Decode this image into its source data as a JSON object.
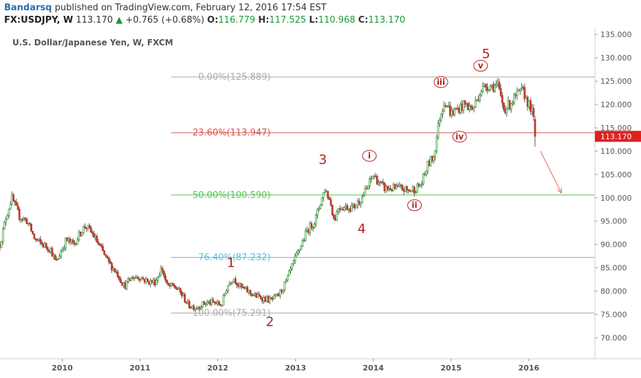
{
  "header": {
    "author": "Bandarsq",
    "published_text": "published on TradingView.com, February 12, 2016 17:54 EST",
    "symbol": "FX:USDJPY, W",
    "last": "113.170",
    "change": "+0.765 (+0.68%)",
    "o_label": "O:",
    "o_value": "116.779",
    "h_label": "H:",
    "h_value": "117.525",
    "l_label": "L:",
    "l_value": "110.968",
    "c_label": "C:",
    "c_value": "113.170"
  },
  "colors": {
    "up_body": "#ffffff",
    "down_body": "#c0392b",
    "wick": "#5a5a5a",
    "up_border": "#3aa13a",
    "fib_0": "#aaaaaa",
    "fib_236": "#d9534f",
    "fib_50": "#55c455",
    "fib_764": "#5bc0de",
    "fib_100": "#aaaaaa",
    "wave_label": "#b22222",
    "price_tag": "#e02020"
  },
  "chart_data": {
    "type": "candlestick",
    "title": "U.S. Dollar/Japanese Yen, W, FXCM",
    "x_start": 2009.2,
    "x_end": 2016.85,
    "ylim": [
      65.5,
      136.5
    ],
    "x_ticks": [
      2010,
      2011,
      2012,
      2013,
      2014,
      2015,
      2016
    ],
    "x_tick_labels": [
      "2010",
      "2011",
      "2012",
      "2013",
      "2014",
      "2015",
      "2016"
    ],
    "y_ticks": [
      70,
      75,
      80,
      85,
      90,
      95,
      100,
      105,
      110,
      115,
      120,
      125,
      130,
      135
    ],
    "y_tick_labels": [
      "70.000",
      "75.000",
      "80.000",
      "85.000",
      "90.000",
      "95.000",
      "100.000",
      "105.000",
      "110.000",
      "115.000",
      "120.000",
      "125.000",
      "130.000",
      "135.000"
    ],
    "last_price": 113.17,
    "last_price_label": "113.170",
    "fib_levels": [
      {
        "label": "0.00%(125.889)",
        "price": 125.889,
        "color": "#aaaaaa"
      },
      {
        "label": "23.60%(113.947)",
        "price": 113.947,
        "color": "#d9534f"
      },
      {
        "label": "50.00%(100.590)",
        "price": 100.59,
        "color": "#55c455"
      },
      {
        "label": "76.40%(87.232)",
        "price": 87.232,
        "color": "#5bc0de"
      },
      {
        "label": "100.00%(75.291)",
        "price": 75.291,
        "color": "#aaaaaa"
      }
    ],
    "price_path": [
      [
        2009.2,
        90
      ],
      [
        2009.28,
        96
      ],
      [
        2009.35,
        100
      ],
      [
        2009.45,
        96
      ],
      [
        2009.55,
        95
      ],
      [
        2009.65,
        91
      ],
      [
        2009.75,
        90
      ],
      [
        2009.85,
        89
      ],
      [
        2009.92,
        86
      ],
      [
        2010.05,
        91
      ],
      [
        2010.15,
        90
      ],
      [
        2010.25,
        93
      ],
      [
        2010.3,
        94
      ],
      [
        2010.4,
        92
      ],
      [
        2010.5,
        89
      ],
      [
        2010.6,
        86
      ],
      [
        2010.7,
        84
      ],
      [
        2010.8,
        81
      ],
      [
        2010.9,
        83
      ],
      [
        2011.0,
        83
      ],
      [
        2011.1,
        82
      ],
      [
        2011.2,
        82
      ],
      [
        2011.28,
        85
      ],
      [
        2011.35,
        81
      ],
      [
        2011.45,
        81
      ],
      [
        2011.55,
        79
      ],
      [
        2011.62,
        77
      ],
      [
        2011.72,
        76.5
      ],
      [
        2011.85,
        77.5
      ],
      [
        2011.95,
        77.5
      ],
      [
        2012.05,
        77
      ],
      [
        2012.12,
        81
      ],
      [
        2012.2,
        83
      ],
      [
        2012.28,
        81
      ],
      [
        2012.38,
        80
      ],
      [
        2012.48,
        79
      ],
      [
        2012.58,
        78.5
      ],
      [
        2012.68,
        78
      ],
      [
        2012.78,
        79
      ],
      [
        2012.88,
        82
      ],
      [
        2012.95,
        85
      ],
      [
        2013.05,
        89
      ],
      [
        2013.15,
        93
      ],
      [
        2013.25,
        95
      ],
      [
        2013.32,
        99
      ],
      [
        2013.38,
        102
      ],
      [
        2013.45,
        99
      ],
      [
        2013.5,
        95
      ],
      [
        2013.55,
        98
      ],
      [
        2013.65,
        98
      ],
      [
        2013.75,
        98
      ],
      [
        2013.85,
        100
      ],
      [
        2013.92,
        102
      ],
      [
        2014.0,
        105
      ],
      [
        2014.08,
        103
      ],
      [
        2014.15,
        102
      ],
      [
        2014.25,
        102
      ],
      [
        2014.35,
        102
      ],
      [
        2014.45,
        101.5
      ],
      [
        2014.55,
        102
      ],
      [
        2014.62,
        103
      ],
      [
        2014.7,
        107
      ],
      [
        2014.78,
        109
      ],
      [
        2014.85,
        117
      ],
      [
        2014.92,
        121
      ],
      [
        2015.0,
        118
      ],
      [
        2015.08,
        119
      ],
      [
        2015.18,
        120
      ],
      [
        2015.28,
        119
      ],
      [
        2015.38,
        123
      ],
      [
        2015.45,
        124
      ],
      [
        2015.52,
        124
      ],
      [
        2015.6,
        124
      ],
      [
        2015.68,
        119
      ],
      [
        2015.75,
        120
      ],
      [
        2015.85,
        122
      ],
      [
        2015.92,
        123
      ],
      [
        2016.0,
        120
      ],
      [
        2016.05,
        118
      ],
      [
        2016.09,
        113.17
      ]
    ],
    "wave_labels": [
      {
        "text": "1",
        "x": 2012.17,
        "y": 86.2,
        "style": "plain"
      },
      {
        "text": "2",
        "x": 2012.67,
        "y": 73.5,
        "style": "plain"
      },
      {
        "text": "3",
        "x": 2013.35,
        "y": 108.3,
        "style": "plain"
      },
      {
        "text": "4",
        "x": 2013.85,
        "y": 93.5,
        "style": "plain"
      },
      {
        "text": "5",
        "x": 2015.45,
        "y": 131.0,
        "style": "plain"
      },
      {
        "text": "i",
        "x": 2013.95,
        "y": 109.0,
        "style": "circle"
      },
      {
        "text": "ii",
        "x": 2014.53,
        "y": 98.4,
        "style": "circle"
      },
      {
        "text": "iii",
        "x": 2014.87,
        "y": 124.8,
        "style": "circle"
      },
      {
        "text": "iv",
        "x": 2015.11,
        "y": 113.1,
        "style": "circle"
      },
      {
        "text": "v",
        "x": 2015.38,
        "y": 128.3,
        "style": "circle"
      }
    ],
    "arrow": {
      "from": [
        2016.15,
        110.0
      ],
      "to": [
        2016.42,
        101.0
      ]
    }
  }
}
